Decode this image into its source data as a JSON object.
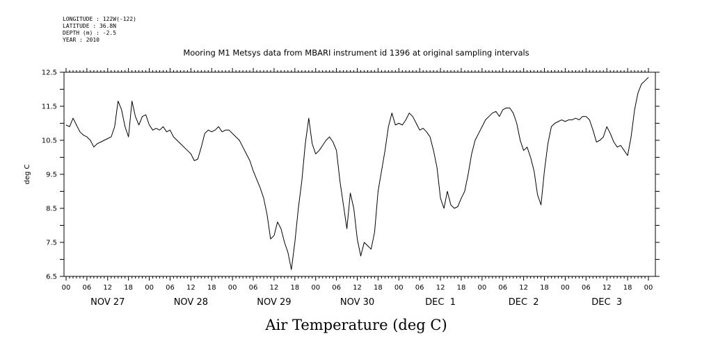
{
  "header": {
    "longitude": "LONGITUDE : 122W(-122)",
    "latitude": "LATITUDE : 36.8N",
    "depth": "DEPTH (m) : -2.5",
    "year": "YEAR : 2010"
  },
  "chart_data": {
    "type": "line",
    "title": "Mooring M1 Metsys data from MBARI instrument id 1396 at original sampling intervals",
    "xlabel": "Air Temperature (deg C)",
    "ylabel": "deg C",
    "ylim": [
      6.5,
      12.5
    ],
    "yticks": [
      "6.5",
      "7.5",
      "8.5",
      "9.5",
      "10.5",
      "11.5",
      "12.5"
    ],
    "xlim_hours": [
      0,
      168
    ],
    "hour_ticks": [
      "00",
      "06",
      "12",
      "18",
      "00",
      "06",
      "12",
      "18",
      "00",
      "06",
      "12",
      "18",
      "00",
      "06",
      "12",
      "18",
      "00",
      "06",
      "12",
      "18",
      "00",
      "06",
      "12",
      "18",
      "00",
      "06",
      "12",
      "18",
      "00"
    ],
    "day_labels": [
      "NOV 27",
      "NOV 28",
      "NOV 29",
      "NOV 30",
      "DEC  1",
      "DEC  2",
      "DEC  3"
    ],
    "series": [
      {
        "x": [
          0,
          1,
          2,
          3,
          4,
          5,
          6,
          7,
          8,
          9,
          10,
          11,
          12,
          13,
          14,
          15,
          16,
          17,
          18,
          19,
          20,
          21,
          22,
          23,
          24,
          25,
          26,
          27,
          28,
          29,
          30,
          31,
          32,
          33,
          34,
          35,
          36,
          37,
          38,
          39,
          40,
          41,
          42,
          43,
          44,
          45,
          46,
          47,
          48,
          49,
          50,
          51,
          52,
          53,
          54,
          55,
          56,
          57,
          58,
          59,
          60,
          61,
          62,
          63,
          64,
          65,
          66,
          67,
          68,
          69,
          70,
          71,
          72,
          73,
          74,
          75,
          76,
          77,
          78,
          79,
          80,
          81,
          82,
          83,
          84,
          85,
          86,
          87,
          88,
          89,
          90,
          91,
          92,
          93,
          94,
          95,
          96,
          97,
          98,
          99,
          100,
          101,
          102,
          103,
          104,
          105,
          106,
          107,
          108,
          109,
          110,
          111,
          112,
          113,
          114,
          115,
          116,
          117,
          118,
          119,
          120,
          121,
          122,
          123,
          124,
          125,
          126,
          127,
          128,
          129,
          130,
          131,
          132,
          133,
          134,
          135,
          136,
          137,
          138,
          139,
          140,
          141,
          142,
          143,
          144,
          145,
          146,
          147,
          148,
          149,
          150,
          151,
          152,
          153,
          154,
          155,
          156,
          157,
          158,
          159,
          160,
          161,
          162,
          163,
          164,
          165,
          166,
          167,
          168
        ],
        "y": [
          10.95,
          10.9,
          11.15,
          10.95,
          10.75,
          10.65,
          10.6,
          10.5,
          10.3,
          10.4,
          10.45,
          10.5,
          10.55,
          10.6,
          10.9,
          11.65,
          11.4,
          10.9,
          10.6,
          11.65,
          11.2,
          10.95,
          11.2,
          11.25,
          10.95,
          10.8,
          10.85,
          10.8,
          10.9,
          10.75,
          10.8,
          10.6,
          10.5,
          10.4,
          10.3,
          10.2,
          10.1,
          9.9,
          9.95,
          10.3,
          10.7,
          10.8,
          10.75,
          10.8,
          10.9,
          10.75,
          10.8,
          10.8,
          10.7,
          10.6,
          10.5,
          10.3,
          10.1,
          9.9,
          9.6,
          9.35,
          9.1,
          8.8,
          8.3,
          7.6,
          7.7,
          8.1,
          7.9,
          7.5,
          7.2,
          6.7,
          7.5,
          8.5,
          9.3,
          10.4,
          11.15,
          10.4,
          10.1,
          10.2,
          10.35,
          10.5,
          10.6,
          10.45,
          10.2,
          9.3,
          8.6,
          7.9,
          8.95,
          8.5,
          7.6,
          7.1,
          7.5,
          7.4,
          7.3,
          7.8,
          9.0,
          9.6,
          10.2,
          10.9,
          11.3,
          10.95,
          11.0,
          10.95,
          11.1,
          11.3,
          11.2,
          11.0,
          10.8,
          10.85,
          10.75,
          10.6,
          10.2,
          9.7,
          8.8,
          8.5,
          9.0,
          8.6,
          8.5,
          8.55,
          8.8,
          9.0,
          9.5,
          10.1,
          10.5,
          10.7,
          10.9,
          11.1,
          11.2,
          11.3,
          11.35,
          11.2,
          11.4,
          11.45,
          11.45,
          11.3,
          11.0,
          10.5,
          10.2,
          10.3,
          10.0,
          9.6,
          8.9,
          8.6,
          9.6,
          10.4,
          10.9,
          11.0,
          11.05,
          11.1,
          11.05,
          11.1,
          11.1,
          11.15,
          11.1,
          11.2,
          11.2,
          11.1,
          10.8,
          10.45,
          10.5,
          10.6,
          10.9,
          10.7,
          10.45,
          10.3,
          10.35,
          10.2,
          10.05,
          10.6,
          11.4,
          11.9,
          12.15,
          12.25,
          12.35
        ]
      }
    ]
  }
}
